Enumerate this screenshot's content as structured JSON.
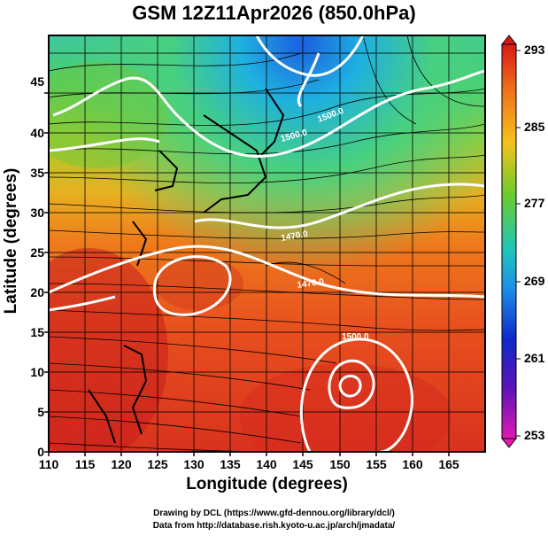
{
  "title": "GSM 12Z11Apr2026 (850.0hPa)",
  "xlabel": "Longitude (degrees)",
  "ylabel": "Latitude  (degrees)",
  "credit_line1": "Drawing by DCL (https://www.gfd-dennou.org/library/dcl/)",
  "credit_line2": "Data from http://database.rish.kyoto-u.ac.jp/arch/jmadata/",
  "x_ticks": [
    "110",
    "115",
    "120",
    "125",
    "130",
    "135",
    "140",
    "145",
    "150",
    "155",
    "160",
    "165"
  ],
  "y_ticks": [
    "0",
    "5",
    "10",
    "15",
    "20",
    "25",
    "30",
    "35",
    "40",
    "45"
  ],
  "colorbar_ticks": [
    "293",
    "285",
    "277",
    "269",
    "261",
    "253"
  ],
  "contour_labels": [
    "1500.0",
    "1500.0",
    "1470.0",
    "1470.0",
    "1500.0"
  ],
  "map_data": {
    "lon_range": [
      110,
      170
    ],
    "lat_range": [
      0,
      50
    ],
    "field": "temperature (K) with streamlines and geopotential height contours",
    "colorbar_range": [
      253,
      293
    ],
    "colors": {
      "warm": "#e84a2a",
      "hot": "#c81e1e",
      "mid": "#7fd23a",
      "cool": "#2ec8d8",
      "cold": "#1060e0"
    }
  }
}
